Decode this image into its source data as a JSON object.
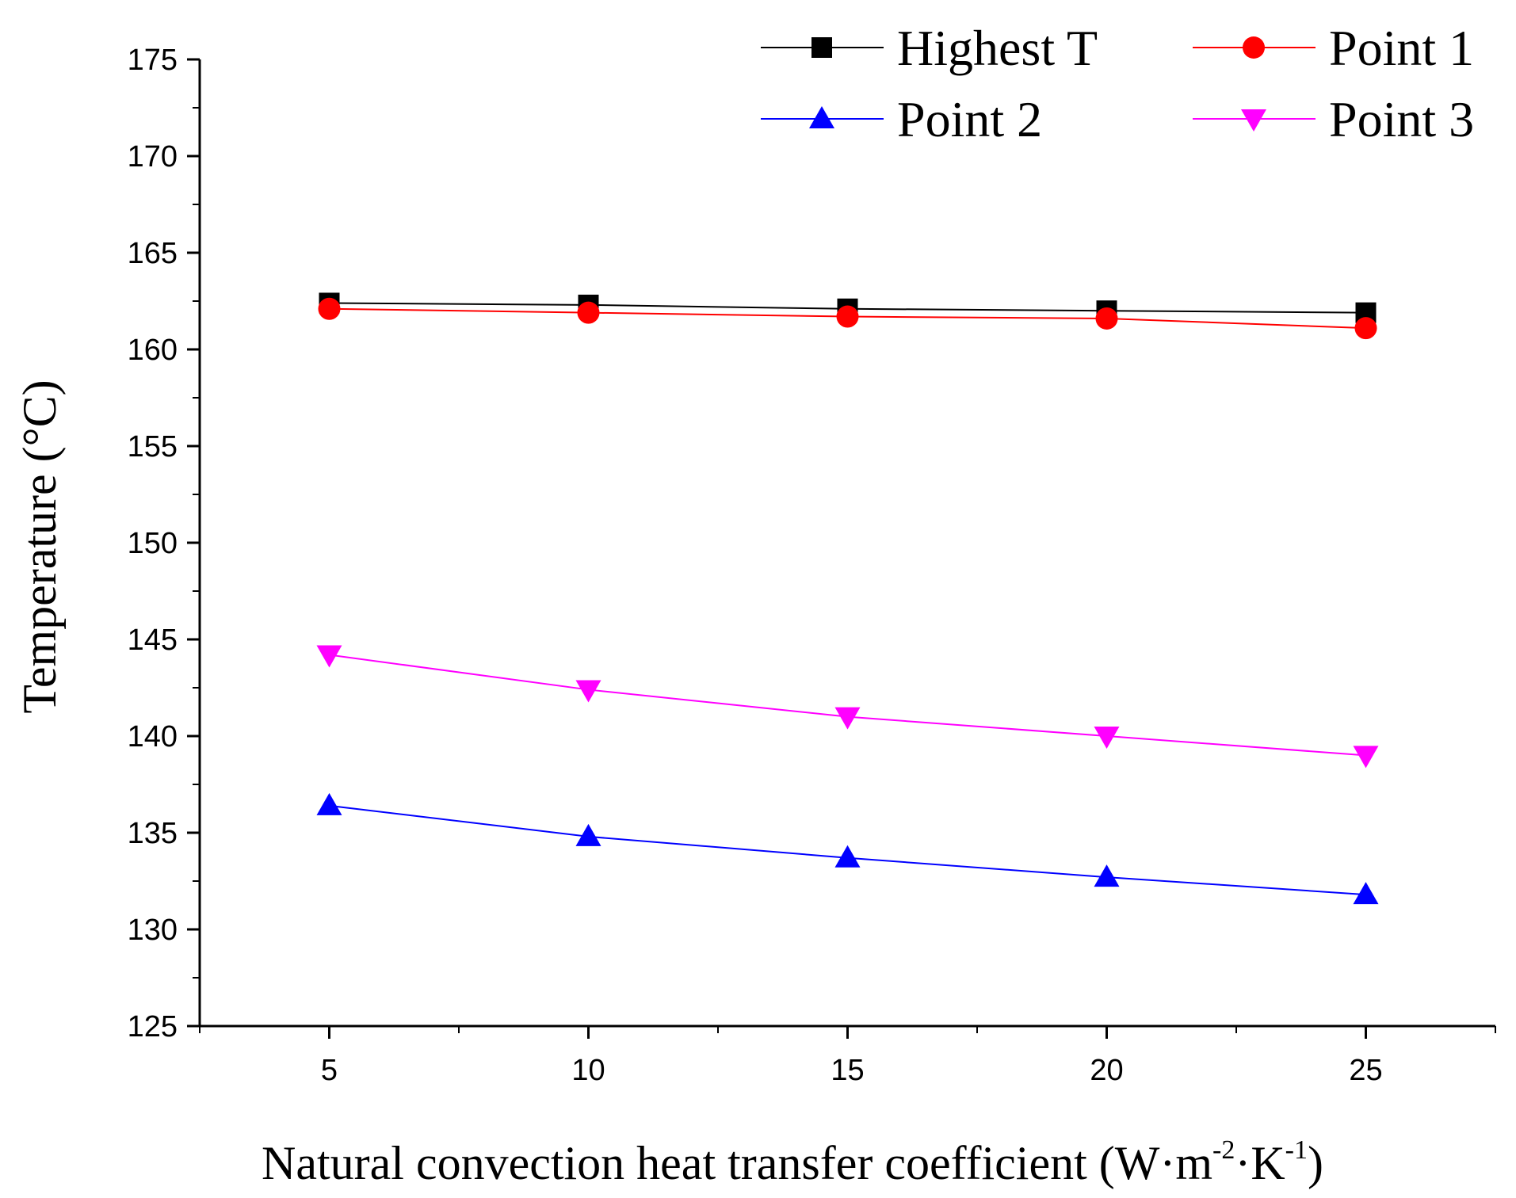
{
  "chart_data": {
    "type": "line",
    "x": [
      5,
      10,
      15,
      20,
      25
    ],
    "xlim": [
      2.5,
      27.5
    ],
    "ylim": [
      125,
      175
    ],
    "xticks": [
      "5",
      "10",
      "15",
      "20",
      "25"
    ],
    "yticks": [
      "125",
      "130",
      "135",
      "140",
      "145",
      "150",
      "155",
      "160",
      "165",
      "170",
      "175"
    ],
    "xlabel_main": "Natural convection heat transfer coefficient (W·m",
    "xlabel_sup1": "-2",
    "xlabel_mid": "·K",
    "xlabel_sup2": "-1",
    "xlabel_end": ")",
    "ylabel": "Temperature (°C)",
    "legend_position": "top-right",
    "series": [
      {
        "name": "Highest T",
        "marker": "square",
        "color": "#000000",
        "values": [
          162.4,
          162.3,
          162.1,
          162.0,
          161.9
        ]
      },
      {
        "name": "Point 1",
        "marker": "circle",
        "color": "#ff0000",
        "values": [
          162.1,
          161.9,
          161.7,
          161.6,
          161.1
        ]
      },
      {
        "name": "Point 2",
        "marker": "triangle-up",
        "color": "#0000ff",
        "values": [
          136.4,
          134.8,
          133.7,
          132.7,
          131.8
        ]
      },
      {
        "name": "Point 3",
        "marker": "triangle-down",
        "color": "#ff00ff",
        "values": [
          144.2,
          142.4,
          141.0,
          140.0,
          139.0
        ]
      }
    ]
  }
}
